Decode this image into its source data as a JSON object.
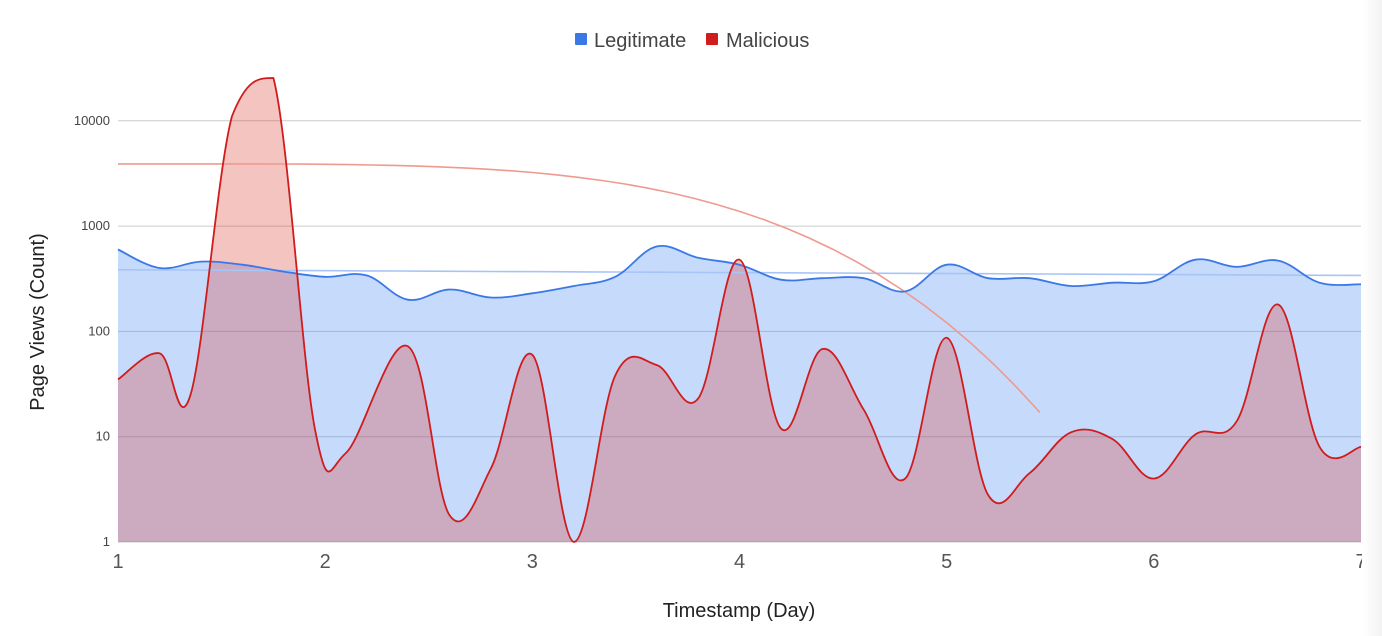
{
  "chart_data": {
    "type": "area",
    "xlabel": "Timestamp (Day)",
    "ylabel": "Page Views (Count)",
    "x_ticks": [
      "1",
      "2",
      "3",
      "4",
      "5",
      "6",
      "7"
    ],
    "y_ticks": [
      {
        "value": 1,
        "label": "1"
      },
      {
        "value": 10,
        "label": "10"
      },
      {
        "value": 100,
        "label": "100"
      },
      {
        "value": 1000,
        "label": "1000"
      },
      {
        "value": 10000,
        "label": "10000"
      }
    ],
    "xlim": [
      1,
      7
    ],
    "ylim": [
      1,
      30000
    ],
    "y_scale": "log",
    "grid": "horizontal",
    "legend_position": "top-center",
    "series": [
      {
        "name": "Legitimate",
        "color": "#3b78e7",
        "fill": "rgba(66,133,244,0.30)",
        "x": [
          1,
          1.2,
          1.4,
          1.6,
          1.8,
          2,
          2.2,
          2.4,
          2.6,
          2.8,
          3,
          3.2,
          3.4,
          3.6,
          3.8,
          4,
          4.2,
          4.4,
          4.6,
          4.8,
          5,
          5.2,
          5.4,
          5.6,
          5.8,
          6,
          6.2,
          6.4,
          6.6,
          6.8,
          7
        ],
        "values": [
          600,
          400,
          460,
          430,
          370,
          330,
          340,
          200,
          250,
          210,
          230,
          270,
          330,
          640,
          500,
          430,
          310,
          320,
          320,
          240,
          430,
          320,
          320,
          270,
          290,
          300,
          480,
          410,
          470,
          290,
          280
        ],
        "trend": {
          "x": [
            1,
            7
          ],
          "values": [
            385,
            340
          ],
          "color": "#a8c4f5"
        }
      },
      {
        "name": "Malicious",
        "color": "#d01c1c",
        "fill": "rgba(220,60,50,0.30)",
        "x": [
          1,
          1.2,
          1.35,
          1.55,
          1.75,
          1.95,
          2.1,
          2.4,
          2.6,
          2.8,
          3,
          3.2,
          3.4,
          3.6,
          3.8,
          4,
          4.2,
          4.4,
          4.6,
          4.8,
          5,
          5.2,
          5.4,
          5.6,
          5.8,
          6,
          6.2,
          6.4,
          6.6,
          6.8,
          7
        ],
        "values": [
          35,
          62,
          25,
          11000,
          30000,
          12,
          7,
          72,
          1.8,
          5,
          60,
          1,
          38,
          48,
          23,
          480,
          12,
          68,
          18,
          4,
          87,
          2.8,
          4.5,
          11,
          9.5,
          4,
          10.5,
          14,
          180,
          8,
          8
        ],
        "trend": {
          "x": [
            1,
            5.45
          ],
          "values": [
            3900,
            17
          ],
          "color": "#ee9a8f"
        }
      }
    ]
  }
}
